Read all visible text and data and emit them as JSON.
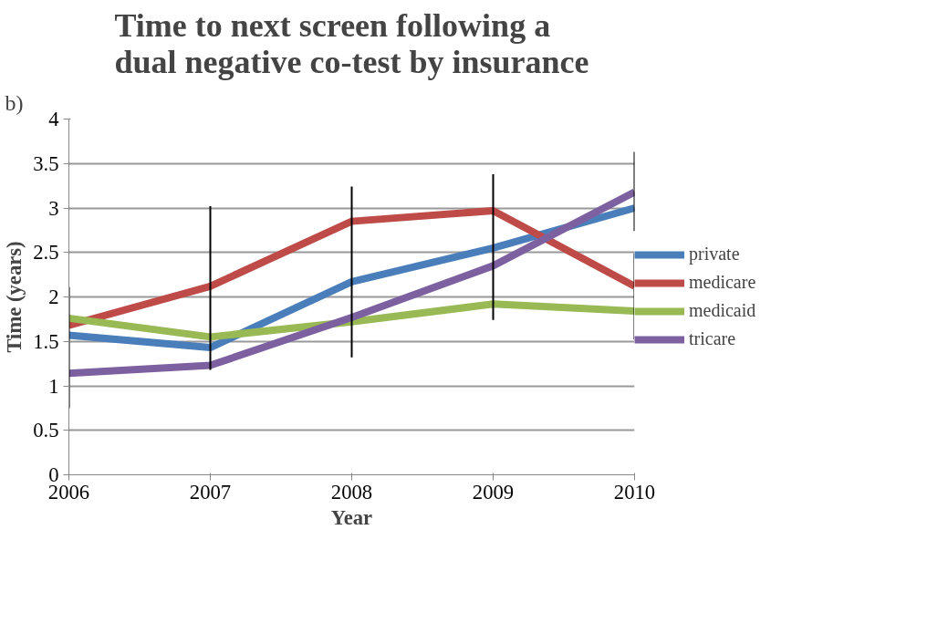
{
  "chart_data": {
    "type": "line",
    "title": "Time to next screen following a dual negative co-test by insurance",
    "xlabel": "Year",
    "ylabel": "Time (years)",
    "annotations": [
      "b)"
    ],
    "x": [
      2006,
      2007,
      2008,
      2009,
      2010
    ],
    "xlim": [
      2006,
      2010
    ],
    "xticks": [
      2006,
      2007,
      2008,
      2009,
      2010
    ],
    "ylim": [
      0,
      4
    ],
    "yticks": [
      0,
      0.5,
      1,
      1.5,
      2,
      2.5,
      3,
      3.5,
      4
    ],
    "grid": "y",
    "legend": "right",
    "marker": "none",
    "line_style": "solid",
    "series": [
      {
        "name": "private",
        "color": "#4a7ebb",
        "values": [
          1.57,
          1.43,
          2.17,
          2.55,
          3.0
        ],
        "errors": [
          [
            0.75,
            2.11
          ],
          [
            1.18,
            3.02
          ],
          [
            1.32,
            3.24
          ],
          [
            1.74,
            3.38
          ],
          [
            2.74,
            3.63
          ]
        ]
      },
      {
        "name": "medicare",
        "color": "#be4b48",
        "values": [
          1.68,
          2.12,
          2.85,
          2.97,
          2.12
        ],
        "errors": [
          null,
          null,
          null,
          null,
          [
            1.52,
            2.49
          ]
        ]
      },
      {
        "name": "medicaid",
        "color": "#98b954",
        "values": [
          1.76,
          1.55,
          1.72,
          1.92,
          1.84
        ]
      },
      {
        "name": "tricare",
        "color": "#7d60a0",
        "values": [
          1.14,
          1.23,
          1.77,
          2.35,
          3.18
        ]
      }
    ]
  }
}
